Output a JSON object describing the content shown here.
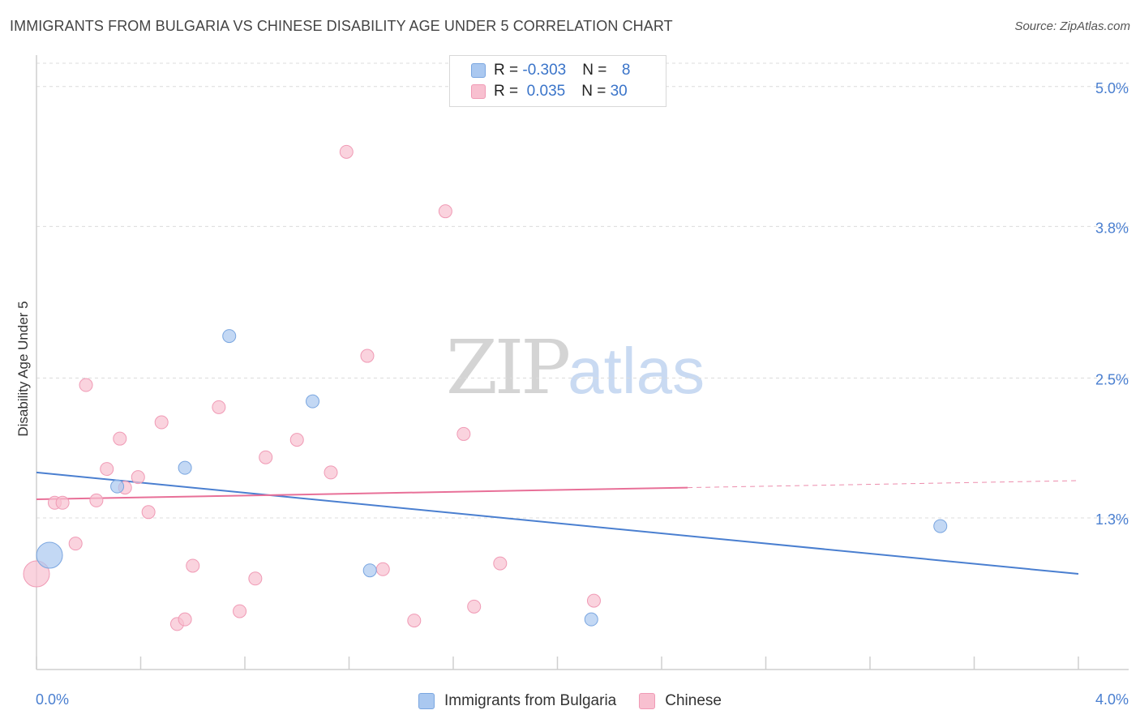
{
  "header": {
    "title": "IMMIGRANTS FROM BULGARIA VS CHINESE DISABILITY AGE UNDER 5 CORRELATION CHART",
    "source": "Source: ZipAtlas.com"
  },
  "watermark": {
    "zip": "ZIP",
    "atlas": "atlas"
  },
  "legend": {
    "rows": [
      {
        "r_label": "R = ",
        "r_value": "-0.303",
        "n_label": "N = ",
        "n_value": " 8",
        "color": "#aac8f0"
      },
      {
        "r_label": "R = ",
        "r_value": " 0.035",
        "n_label": "N = ",
        "n_value": "30",
        "color": "#f8c0d0"
      }
    ]
  },
  "bottom_legend": {
    "items": [
      {
        "label": "Immigrants from Bulgaria",
        "color": "#aac8f0"
      },
      {
        "label": "Chinese",
        "color": "#f8c0d0"
      }
    ]
  },
  "chart_data": {
    "type": "scatter",
    "title": "IMMIGRANTS FROM BULGARIA VS CHINESE DISABILITY AGE UNDER 5 CORRELATION CHART",
    "xlabel": "",
    "ylabel": "Disability Age Under 5",
    "xlim": [
      0,
      4.0
    ],
    "ylim": [
      0,
      5.2
    ],
    "x_tick_labels": [
      "0.0%",
      "4.0%"
    ],
    "y_ticks": [
      1.3,
      2.5,
      3.8,
      5.0
    ],
    "y_tick_labels": [
      "1.3%",
      "2.5%",
      "3.8%",
      "5.0%"
    ],
    "grid": "horizontal dashed",
    "series": [
      {
        "name": "Immigrants from Bulgaria",
        "color": "#4a7fd0",
        "marker_fill": "#aac8f0",
        "points": [
          {
            "x": 0.05,
            "y": 0.98,
            "size": "large"
          },
          {
            "x": 0.31,
            "y": 1.57
          },
          {
            "x": 0.57,
            "y": 1.73
          },
          {
            "x": 0.74,
            "y": 2.86
          },
          {
            "x": 1.06,
            "y": 2.3
          },
          {
            "x": 1.28,
            "y": 0.85
          },
          {
            "x": 2.13,
            "y": 0.43
          },
          {
            "x": 3.47,
            "y": 1.23
          }
        ],
        "trend": {
          "x": [
            0.0,
            4.0
          ],
          "y": [
            1.69,
            0.82
          ],
          "style": "solid"
        }
      },
      {
        "name": "Chinese",
        "color": "#e87098",
        "marker_fill": "#f8c0d0",
        "points": [
          {
            "x": 0.0,
            "y": 0.82,
            "size": "large"
          },
          {
            "x": 0.07,
            "y": 1.43
          },
          {
            "x": 0.1,
            "y": 1.43
          },
          {
            "x": 0.15,
            "y": 1.08
          },
          {
            "x": 0.19,
            "y": 2.44
          },
          {
            "x": 0.23,
            "y": 1.45
          },
          {
            "x": 0.27,
            "y": 1.72
          },
          {
            "x": 0.32,
            "y": 1.98
          },
          {
            "x": 0.34,
            "y": 1.56
          },
          {
            "x": 0.39,
            "y": 1.65
          },
          {
            "x": 0.43,
            "y": 1.35
          },
          {
            "x": 0.48,
            "y": 2.12
          },
          {
            "x": 0.54,
            "y": 0.39
          },
          {
            "x": 0.57,
            "y": 0.43
          },
          {
            "x": 0.6,
            "y": 0.89
          },
          {
            "x": 0.7,
            "y": 2.25
          },
          {
            "x": 0.78,
            "y": 0.5
          },
          {
            "x": 0.84,
            "y": 0.78
          },
          {
            "x": 0.88,
            "y": 1.82
          },
          {
            "x": 1.0,
            "y": 1.97
          },
          {
            "x": 1.13,
            "y": 1.69
          },
          {
            "x": 1.19,
            "y": 4.44
          },
          {
            "x": 1.27,
            "y": 2.69
          },
          {
            "x": 1.33,
            "y": 0.86
          },
          {
            "x": 1.45,
            "y": 0.42
          },
          {
            "x": 1.57,
            "y": 3.93
          },
          {
            "x": 1.64,
            "y": 2.02
          },
          {
            "x": 1.68,
            "y": 0.54
          },
          {
            "x": 1.78,
            "y": 0.91
          },
          {
            "x": 2.14,
            "y": 0.59
          }
        ],
        "trend": {
          "x": [
            0.0,
            2.5
          ],
          "y": [
            1.46,
            1.56
          ],
          "style": "solid"
        },
        "trend_extension": {
          "x": [
            2.5,
            4.0
          ],
          "y": [
            1.56,
            1.62
          ],
          "style": "dashed"
        }
      }
    ]
  }
}
